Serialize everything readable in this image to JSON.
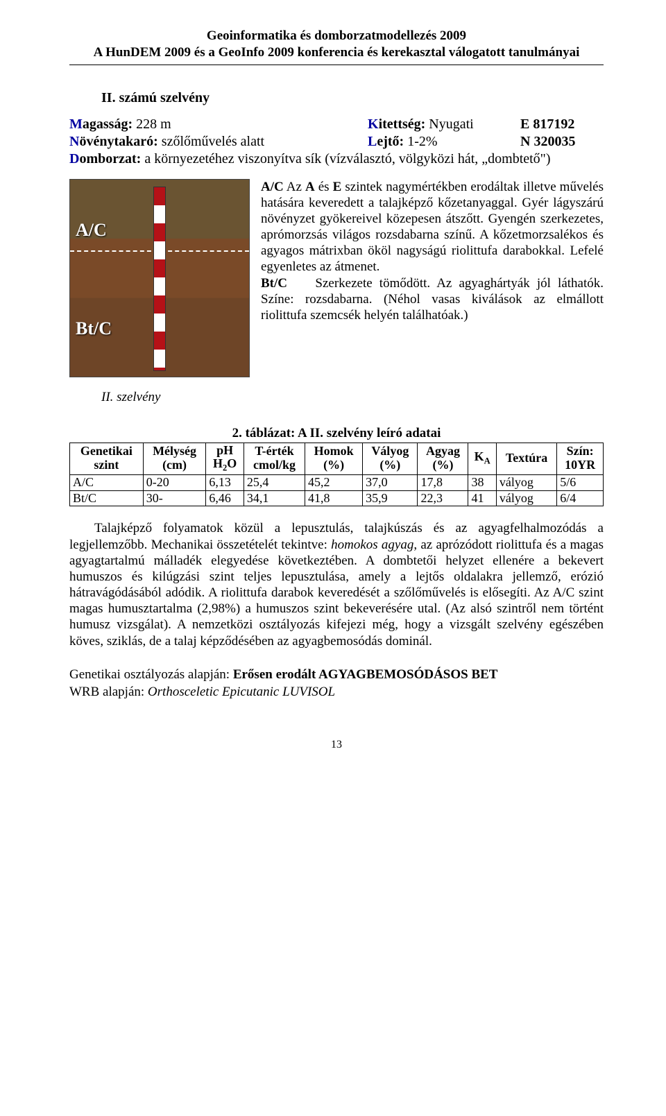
{
  "header": {
    "line1": "Geoinformatika és domborzatmodellezés 2009",
    "line2": "A HunDEM 2009 és a GeoInfo 2009 konferencia és kerekasztal válogatott tanulmányai"
  },
  "section": {
    "title": "II. számú szelvény"
  },
  "photo": {
    "label1": "A/C",
    "label2": "Bt/C"
  },
  "params": {
    "magassag_key": "Magasság:",
    "magassag_val": " 228 m",
    "novenytakaro_key": "Növénytakaró:",
    "novenytakaro_val": " szőlőművelés alatt",
    "kitettseg_key": "Kitettség:",
    "kitettseg_val": " Nyugati",
    "lejto_key": "Lejtő:",
    "lejto_val": " 1-2%",
    "e_code": "E 817192",
    "n_code": "N 320035",
    "domborzat_key": "Domborzat:",
    "domborzat_val": " a környezetéhez viszonyítva sík (vízválasztó, völgyközi hát, „dombtető\")"
  },
  "desc": {
    "ac_label": "A/C",
    "ac_text": " Az ",
    "ac_a": "A",
    "ac_mid": " és ",
    "ac_e": "E",
    "ac_rest": " szintek nagymértékben erodáltak illetve művelés hatására keveredett a talajképző kőzetanyaggal. Gyér lágyszárú növényzet gyökereivel közepesen átszőtt. Gyengén szerkezetes, aprómorzsás világos rozsdabarna színű. A kőzetmorzsalékos és agyagos mátrixban ököl nagyságú riolittufa darabokkal. Lefelé egyenletes az átmenet.",
    "btc_label": "Bt/C",
    "btc_text": " Szerkezete tömődött. Az agyaghártyák jól láthatók. Színe: rozsdabarna. (Néhol vasas kiválások az elmállott riolittufa szemcsék helyén találhatóak.)"
  },
  "caption": "II. szelvény",
  "table": {
    "caption": "2. táblázat: A II. szelvény leíró adatai",
    "headers": {
      "genetikai_l1": "Genetikai",
      "genetikai_l2": "szint",
      "melyseg_l1": "Mélység",
      "melyseg_l2": "(cm)",
      "ph_l1": "pH",
      "ph_l2": "H₂O",
      "tertek_l1": "T-érték",
      "tertek_l2": "cmol/kg",
      "homok_l1": "Homok",
      "homok_l2": "(%)",
      "valyog_l1": "Vályog",
      "valyog_l2": "(%)",
      "agyag_l1": "Agyag",
      "agyag_l2": "(%)",
      "ka": "Kₐ",
      "textura": "Textúra",
      "szin_l1": "Szín:",
      "szin_l2": "10YR"
    },
    "r0": {
      "c0": "A/C",
      "c1": "0-20",
      "c2": "6,13",
      "c3": "25,4",
      "c4": "45,2",
      "c5": "37,0",
      "c6": "17,8",
      "c7": "38",
      "c8": "vályog",
      "c9": "5/6"
    },
    "r1": {
      "c0": "Bt/C",
      "c1": "30-",
      "c2": "6,46",
      "c3": "34,1",
      "c4": "41,8",
      "c5": "35,9",
      "c6": "22,3",
      "c7": "41",
      "c8": "vályog",
      "c9": "6/4"
    }
  },
  "body": {
    "p1a": "Talajképző folyamatok közül a lepusztulás, talajkúszás és az agyagfelhalmozódás a legjellemzőbb. Mechanikai összetételét tekintve: ",
    "p1i": "homokos agyag",
    "p1b": ", az aprózódott riolittufa és a magas agyagtartalmú málladék elegyedése következtében. A dombtetői helyzet ellenére a bekevert humuszos és kilúgzási szint teljes lepusztulása, amely a lejtős oldalakra jellemző, erózió hátravágódásából adódik. A riolittufa darabok keveredését a szőlőművelés is elősegíti. Az A/C szint magas humusztartalma (2,98%) a humuszos szint bekeverésére utal. (Az alsó szintről nem történt humusz vizsgálat). A nemzetközi osztályozás kifejezi még, hogy a vizsgált szelvény egészében köves, sziklás, de a talaj képződésében az agyagbemosódás dominál."
  },
  "class": {
    "gen_prefix": "Genetikai osztályozás alapján: ",
    "gen_val": "Erősen erodált AGYAGBEMOSÓDÁSOS BET",
    "wrb_prefix": "WRB alapján: ",
    "wrb_val": "Orthosceletic Epicutanic LUVISOL"
  },
  "page_number": "13"
}
